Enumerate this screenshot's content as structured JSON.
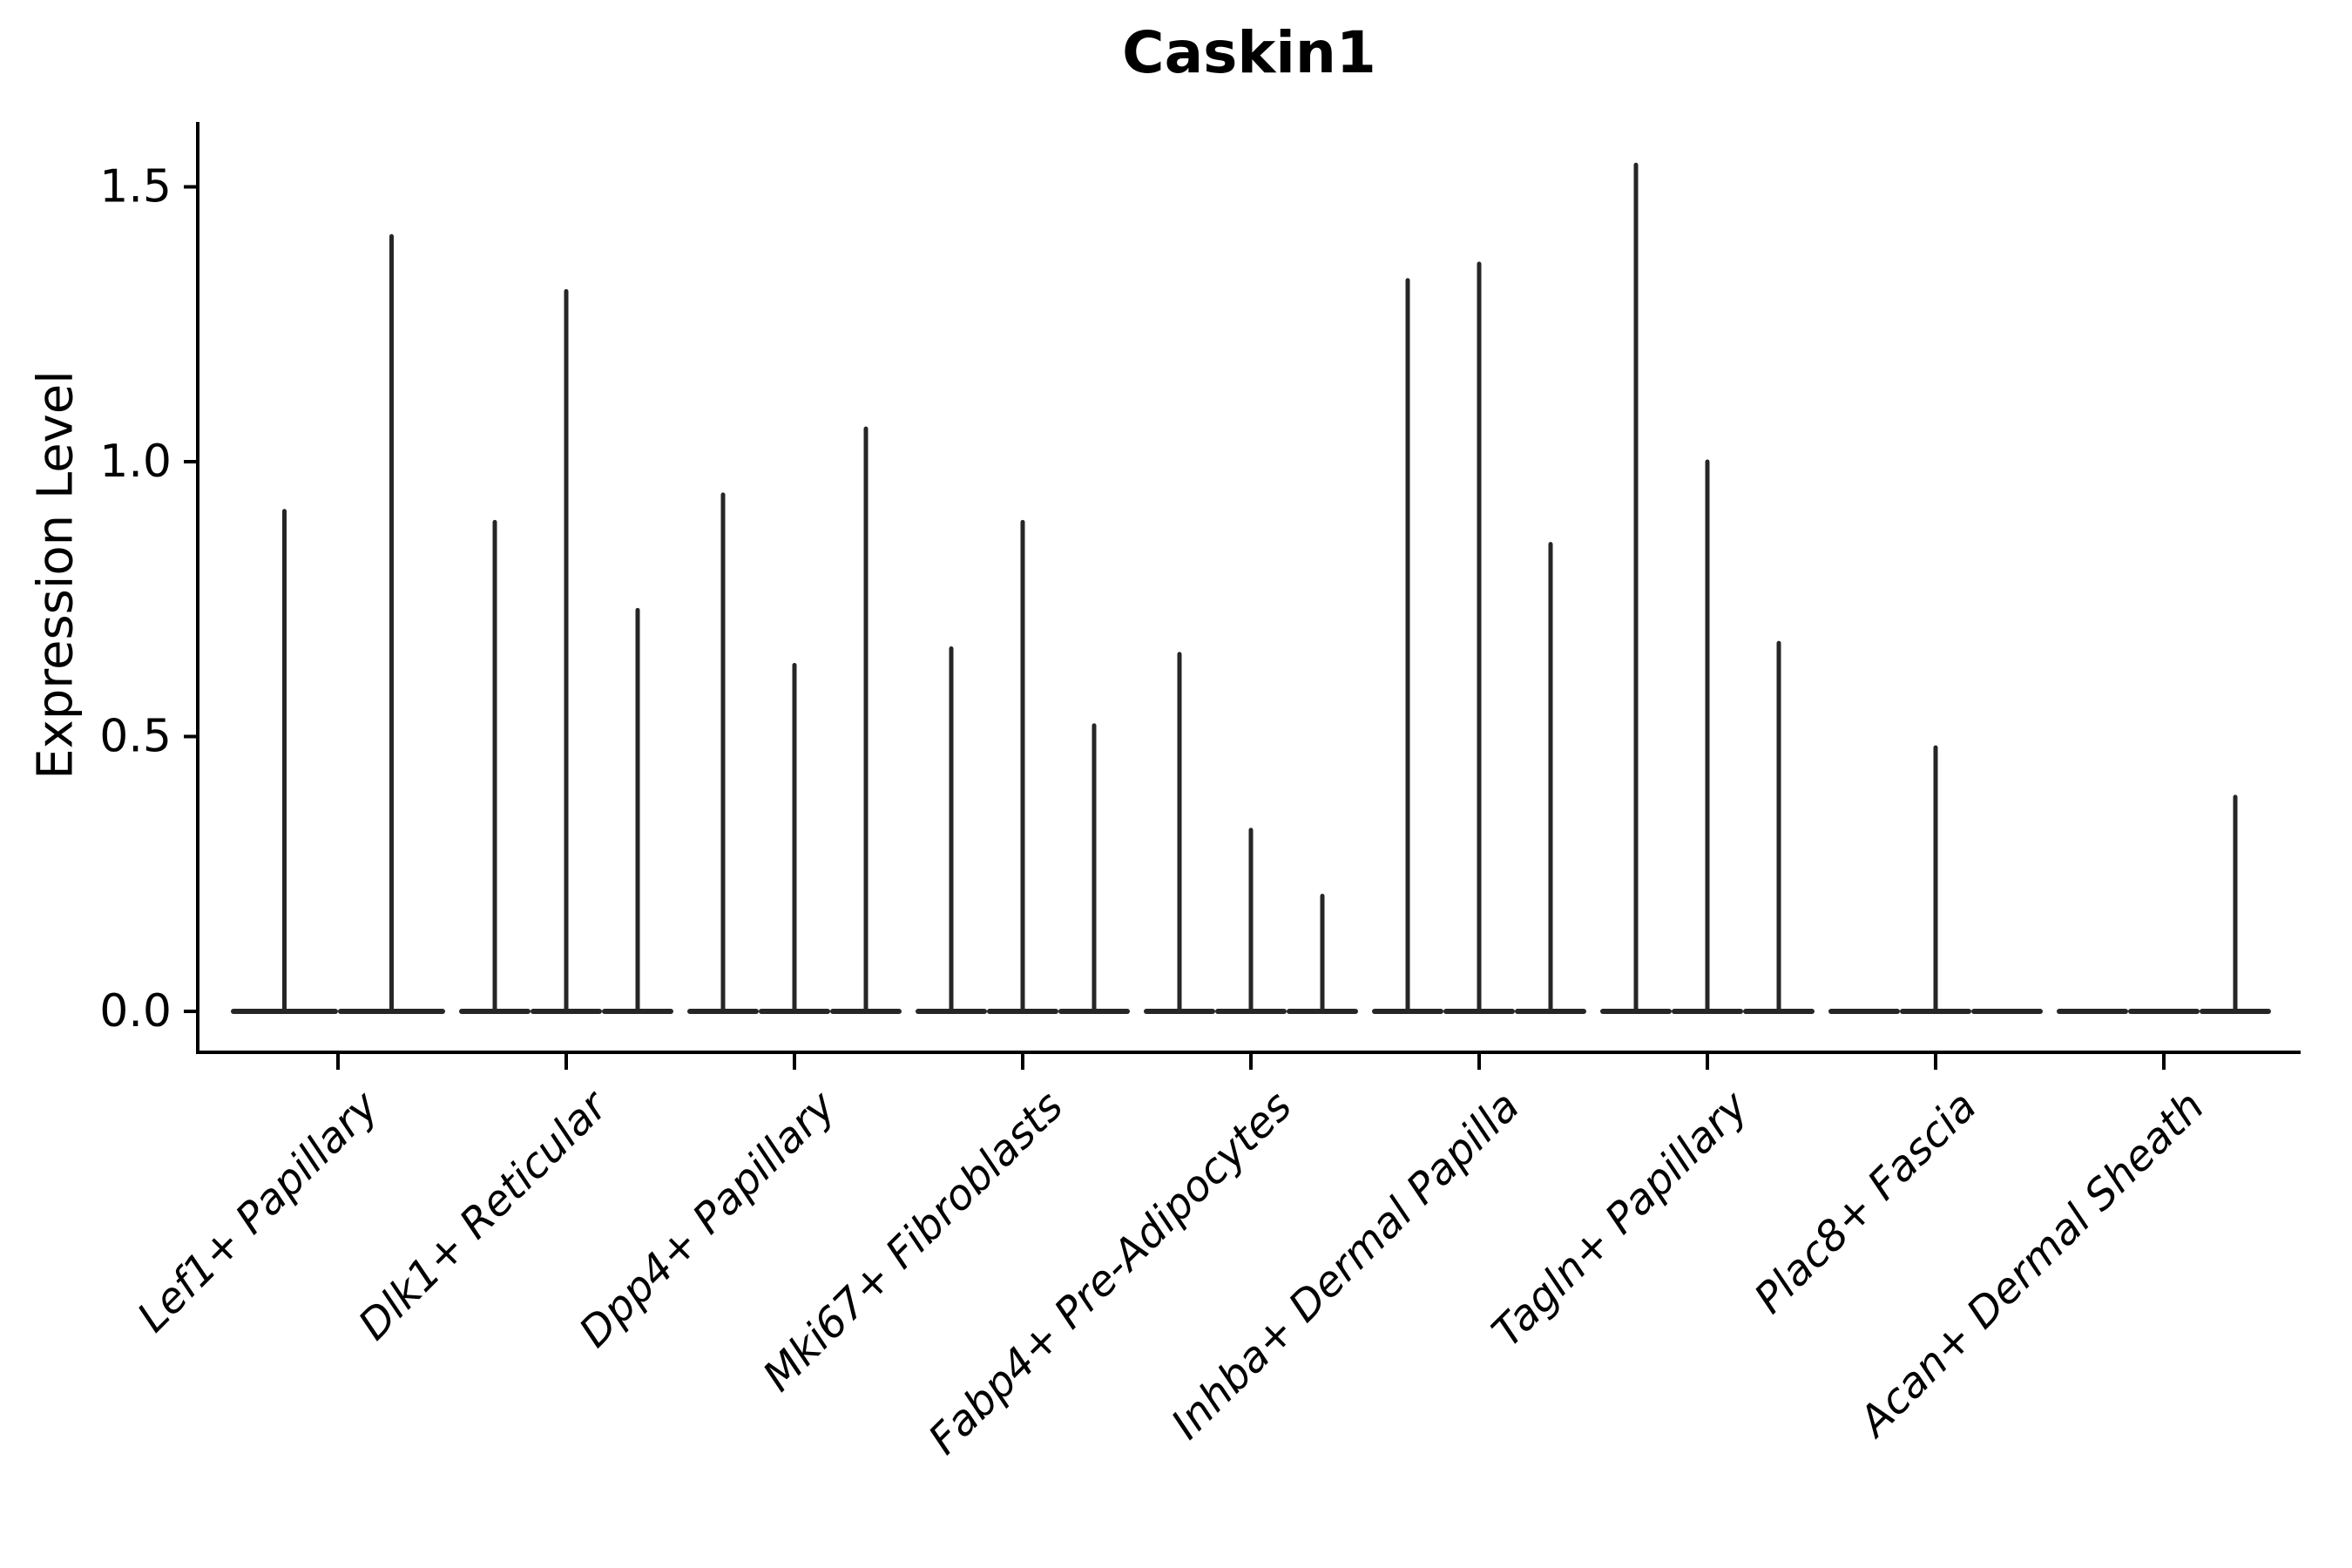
{
  "chart_data": {
    "type": "violin",
    "title": "Caskin1",
    "xlabel": "",
    "ylabel": "Expression Level",
    "grid": false,
    "legend": null,
    "ylim": [
      -0.075,
      1.62
    ],
    "yticks": [
      0.0,
      0.5,
      1.0,
      1.5
    ],
    "ytick_labels": [
      "0.0",
      "0.5",
      "1.0",
      "1.5"
    ],
    "categories": [
      "Lef1+ Papillary",
      "Dlk1+ Reticular",
      "Dpp4+ Papillary",
      "Mki67+ Fibroblasts",
      "Fabp4+ Pre-Adipocytes",
      "Inhba+ Dermal Papilla",
      "Tagln+ Papillary",
      "Plac8+ Fascia",
      "Acan+ Dermal Sheath"
    ],
    "violin_max_expression_per_category": [
      [
        0.91,
        1.41
      ],
      [
        0.89,
        1.31,
        0.73
      ],
      [
        0.94,
        0.63,
        1.06
      ],
      [
        0.66,
        0.89,
        0.52
      ],
      [
        0.65,
        0.33,
        0.21
      ],
      [
        1.33,
        1.36,
        0.85
      ],
      [
        1.54,
        1.0,
        0.67
      ],
      [
        0.0,
        0.48,
        0.0
      ],
      [
        0.0,
        0.0,
        0.39
      ]
    ],
    "colors": {
      "violin_stroke": "#262626",
      "axis": "#000000",
      "text": "#000000",
      "background": "#ffffff"
    }
  }
}
